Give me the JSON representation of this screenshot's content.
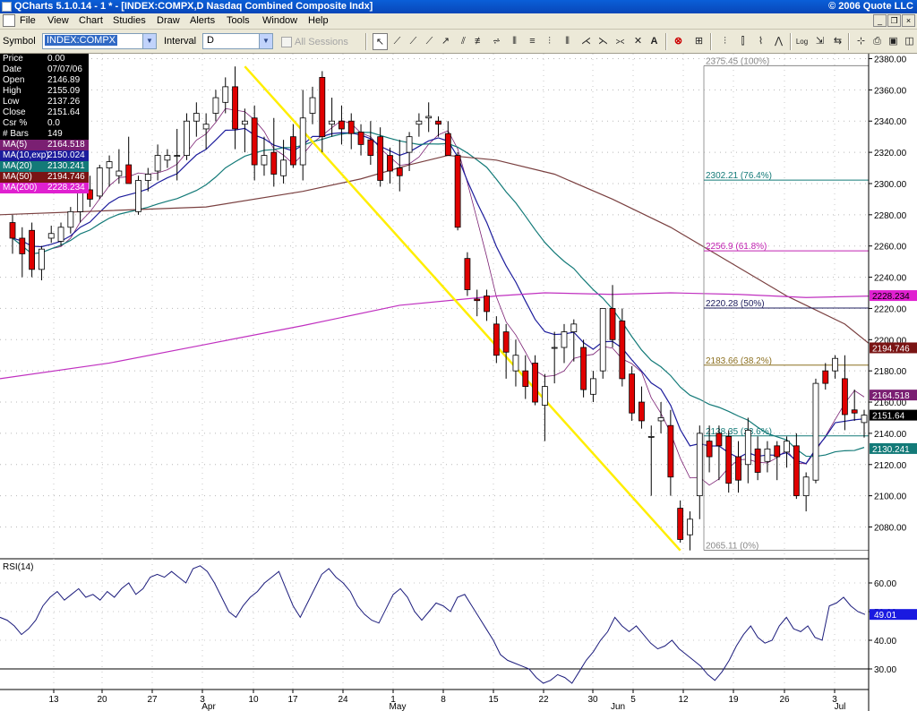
{
  "window": {
    "title": "QCharts 5.1.0.14 - 1 * - [INDEX:COMPX,D Nasdaq Combined Composite Indx]",
    "copyright": "© 2006 Quote LLC"
  },
  "menu": [
    "File",
    "View",
    "Chart",
    "Studies",
    "Draw",
    "Alerts",
    "Tools",
    "Window",
    "Help"
  ],
  "toolbar": {
    "symbol_label": "Symbol",
    "symbol_value": "INDEX:COMPX",
    "interval_label": "Interval",
    "interval_value": "D",
    "sessions_label": "All Sessions"
  },
  "data_window": [
    {
      "label": "Price",
      "value": "0.00",
      "bg": "#000000",
      "fg": "#ffffff"
    },
    {
      "label": "Date",
      "value": "07/07/06",
      "bg": "#000000",
      "fg": "#ffffff"
    },
    {
      "label": "Open",
      "value": "2146.89",
      "bg": "#000000",
      "fg": "#ffffff"
    },
    {
      "label": "High",
      "value": "2155.09",
      "bg": "#000000",
      "fg": "#ffffff"
    },
    {
      "label": "Low",
      "value": "2137.26",
      "bg": "#000000",
      "fg": "#ffffff"
    },
    {
      "label": "Close",
      "value": "2151.64",
      "bg": "#000000",
      "fg": "#ffffff"
    },
    {
      "label": "Csr %",
      "value": "0.0",
      "bg": "#000000",
      "fg": "#ffffff"
    },
    {
      "label": "# Bars",
      "value": "149",
      "bg": "#000000",
      "fg": "#ffffff"
    },
    {
      "label": "MA(5)",
      "value": "2164.518",
      "bg": "#7a1f72",
      "fg": "#ffffff"
    },
    {
      "label": "MA(10,exp)",
      "value": "2150.024",
      "bg": "#1c1c9c",
      "fg": "#ffffff"
    },
    {
      "label": "MA(20)",
      "value": "2130.241",
      "bg": "#137a78",
      "fg": "#ffffff"
    },
    {
      "label": "MA(50)",
      "value": "2194.746",
      "bg": "#7a1414",
      "fg": "#ffffff"
    },
    {
      "label": "MA(200)",
      "value": "2228.234",
      "bg": "#e020d0",
      "fg": "#ffffff"
    }
  ],
  "chart_data": {
    "type": "candlestick",
    "symbol": "INDEX:COMPX",
    "interval": "D",
    "price_axis": {
      "min": 2060,
      "max": 2385,
      "ticks": [
        2080,
        2100,
        2120,
        2140,
        2160,
        2180,
        2200,
        2220,
        2240,
        2260,
        2280,
        2300,
        2320,
        2340,
        2360,
        2380
      ]
    },
    "x_day_labels": [
      "13",
      "20",
      "27",
      "3",
      "10",
      "17",
      "24",
      "1",
      "8",
      "15",
      "22",
      "30",
      "5",
      "12",
      "19",
      "26",
      "3"
    ],
    "x_month_labels": [
      "Apr",
      "May",
      "Jun",
      "Jul"
    ],
    "candles": [
      {
        "o": 2275,
        "h": 2280,
        "l": 2255,
        "c": 2265
      },
      {
        "o": 2265,
        "h": 2272,
        "l": 2240,
        "c": 2255
      },
      {
        "o": 2270,
        "h": 2275,
        "l": 2240,
        "c": 2245
      },
      {
        "o": 2245,
        "h": 2260,
        "l": 2238,
        "c": 2258
      },
      {
        "o": 2265,
        "h": 2273,
        "l": 2262,
        "c": 2268
      },
      {
        "o": 2263,
        "h": 2275,
        "l": 2260,
        "c": 2272
      },
      {
        "o": 2272,
        "h": 2285,
        "l": 2268,
        "c": 2282
      },
      {
        "o": 2282,
        "h": 2300,
        "l": 2275,
        "c": 2297
      },
      {
        "o": 2296,
        "h": 2305,
        "l": 2285,
        "c": 2290
      },
      {
        "o": 2292,
        "h": 2312,
        "l": 2290,
        "c": 2310
      },
      {
        "o": 2310,
        "h": 2318,
        "l": 2298,
        "c": 2314
      },
      {
        "o": 2305,
        "h": 2322,
        "l": 2300,
        "c": 2308
      },
      {
        "o": 2312,
        "h": 2330,
        "l": 2300,
        "c": 2300
      },
      {
        "o": 2282,
        "h": 2305,
        "l": 2280,
        "c": 2302
      },
      {
        "o": 2302,
        "h": 2310,
        "l": 2295,
        "c": 2306
      },
      {
        "o": 2308,
        "h": 2325,
        "l": 2302,
        "c": 2318
      },
      {
        "o": 2315,
        "h": 2322,
        "l": 2310,
        "c": 2318
      },
      {
        "o": 2318,
        "h": 2335,
        "l": 2302,
        "c": 2318
      },
      {
        "o": 2318,
        "h": 2345,
        "l": 2315,
        "c": 2340
      },
      {
        "o": 2340,
        "h": 2352,
        "l": 2330,
        "c": 2345
      },
      {
        "o": 2335,
        "h": 2345,
        "l": 2322,
        "c": 2338
      },
      {
        "o": 2345,
        "h": 2360,
        "l": 2340,
        "c": 2355
      },
      {
        "o": 2352,
        "h": 2368,
        "l": 2345,
        "c": 2362
      },
      {
        "o": 2362,
        "h": 2375,
        "l": 2322,
        "c": 2335
      },
      {
        "o": 2338,
        "h": 2348,
        "l": 2320,
        "c": 2340
      },
      {
        "o": 2342,
        "h": 2350,
        "l": 2302,
        "c": 2312
      },
      {
        "o": 2312,
        "h": 2330,
        "l": 2305,
        "c": 2318
      },
      {
        "o": 2320,
        "h": 2342,
        "l": 2298,
        "c": 2306
      },
      {
        "o": 2305,
        "h": 2328,
        "l": 2300,
        "c": 2315
      },
      {
        "o": 2330,
        "h": 2338,
        "l": 2310,
        "c": 2312
      },
      {
        "o": 2312,
        "h": 2360,
        "l": 2302,
        "c": 2342
      },
      {
        "o": 2345,
        "h": 2362,
        "l": 2338,
        "c": 2355
      },
      {
        "o": 2368,
        "h": 2372,
        "l": 2320,
        "c": 2330
      },
      {
        "o": 2338,
        "h": 2355,
        "l": 2330,
        "c": 2340
      },
      {
        "o": 2340,
        "h": 2350,
        "l": 2325,
        "c": 2335
      },
      {
        "o": 2340,
        "h": 2345,
        "l": 2322,
        "c": 2332
      },
      {
        "o": 2333,
        "h": 2338,
        "l": 2318,
        "c": 2325
      },
      {
        "o": 2328,
        "h": 2340,
        "l": 2312,
        "c": 2318
      },
      {
        "o": 2330,
        "h": 2336,
        "l": 2298,
        "c": 2302
      },
      {
        "o": 2318,
        "h": 2323,
        "l": 2300,
        "c": 2308
      },
      {
        "o": 2310,
        "h": 2328,
        "l": 2295,
        "c": 2305
      },
      {
        "o": 2320,
        "h": 2333,
        "l": 2308,
        "c": 2330
      },
      {
        "o": 2338,
        "h": 2345,
        "l": 2330,
        "c": 2340
      },
      {
        "o": 2342,
        "h": 2352,
        "l": 2333,
        "c": 2343
      },
      {
        "o": 2340,
        "h": 2343,
        "l": 2330,
        "c": 2338
      },
      {
        "o": 2332,
        "h": 2340,
        "l": 2318,
        "c": 2318
      },
      {
        "o": 2318,
        "h": 2320,
        "l": 2270,
        "c": 2272
      },
      {
        "o": 2252,
        "h": 2256,
        "l": 2228,
        "c": 2232
      },
      {
        "o": 2226,
        "h": 2232,
        "l": 2215,
        "c": 2225
      },
      {
        "o": 2228,
        "h": 2232,
        "l": 2212,
        "c": 2218
      },
      {
        "o": 2210,
        "h": 2215,
        "l": 2185,
        "c": 2190
      },
      {
        "o": 2205,
        "h": 2210,
        "l": 2175,
        "c": 2192
      },
      {
        "o": 2180,
        "h": 2200,
        "l": 2170,
        "c": 2190
      },
      {
        "o": 2180,
        "h": 2190,
        "l": 2162,
        "c": 2170
      },
      {
        "o": 2185,
        "h": 2190,
        "l": 2158,
        "c": 2160
      },
      {
        "o": 2158,
        "h": 2178,
        "l": 2135,
        "c": 2170
      },
      {
        "o": 2195,
        "h": 2205,
        "l": 2172,
        "c": 2195
      },
      {
        "o": 2195,
        "h": 2210,
        "l": 2185,
        "c": 2205
      },
      {
        "o": 2205,
        "h": 2213,
        "l": 2186,
        "c": 2210
      },
      {
        "o": 2195,
        "h": 2200,
        "l": 2163,
        "c": 2168
      },
      {
        "o": 2165,
        "h": 2180,
        "l": 2160,
        "c": 2175
      },
      {
        "o": 2180,
        "h": 2218,
        "l": 2175,
        "c": 2220
      },
      {
        "o": 2220,
        "h": 2235,
        "l": 2195,
        "c": 2200
      },
      {
        "o": 2212,
        "h": 2220,
        "l": 2170,
        "c": 2175
      },
      {
        "o": 2178,
        "h": 2183,
        "l": 2148,
        "c": 2153
      },
      {
        "o": 2160,
        "h": 2170,
        "l": 2143,
        "c": 2148
      },
      {
        "o": 2138,
        "h": 2145,
        "l": 2100,
        "c": 2138
      },
      {
        "o": 2148,
        "h": 2160,
        "l": 2140,
        "c": 2150
      },
      {
        "o": 2145,
        "h": 2155,
        "l": 2100,
        "c": 2112
      },
      {
        "o": 2092,
        "h": 2097,
        "l": 2070,
        "c": 2072
      },
      {
        "o": 2075,
        "h": 2090,
        "l": 2065,
        "c": 2085
      },
      {
        "o": 2100,
        "h": 2145,
        "l": 2085,
        "c": 2140
      },
      {
        "o": 2135,
        "h": 2145,
        "l": 2115,
        "c": 2125
      },
      {
        "o": 2140,
        "h": 2145,
        "l": 2110,
        "c": 2132
      },
      {
        "o": 2138,
        "h": 2142,
        "l": 2102,
        "c": 2108
      },
      {
        "o": 2125,
        "h": 2135,
        "l": 2102,
        "c": 2110
      },
      {
        "o": 2120,
        "h": 2150,
        "l": 2108,
        "c": 2142
      },
      {
        "o": 2130,
        "h": 2138,
        "l": 2110,
        "c": 2115
      },
      {
        "o": 2122,
        "h": 2135,
        "l": 2115,
        "c": 2130
      },
      {
        "o": 2132,
        "h": 2135,
        "l": 2110,
        "c": 2125
      },
      {
        "o": 2128,
        "h": 2138,
        "l": 2118,
        "c": 2135
      },
      {
        "o": 2132,
        "h": 2140,
        "l": 2098,
        "c": 2100
      },
      {
        "o": 2100,
        "h": 2115,
        "l": 2090,
        "c": 2112
      },
      {
        "o": 2110,
        "h": 2175,
        "l": 2108,
        "c": 2172
      },
      {
        "o": 2180,
        "h": 2185,
        "l": 2168,
        "c": 2172
      },
      {
        "o": 2180,
        "h": 2190,
        "l": 2175,
        "c": 2188
      },
      {
        "o": 2175,
        "h": 2190,
        "l": 2142,
        "c": 2152
      },
      {
        "o": 2155,
        "h": 2168,
        "l": 2148,
        "c": 2153
      },
      {
        "o": 2146.89,
        "h": 2155.09,
        "l": 2137.26,
        "c": 2151.64
      }
    ],
    "moving_averages": [
      {
        "name": "MA(5)",
        "period": 5,
        "kind": "sma",
        "color": "#7a1f72",
        "last": 2164.518
      },
      {
        "name": "MA(10,exp)",
        "period": 10,
        "kind": "ema",
        "color": "#1c1c9c",
        "last": 2150.024
      },
      {
        "name": "MA(20)",
        "period": 20,
        "kind": "sma",
        "color": "#137a78",
        "last": 2130.241
      },
      {
        "name": "MA(50)",
        "kind": "path",
        "color": "#7a4040",
        "last": 2194.746,
        "path": [
          [
            0,
            2280
          ],
          [
            20,
            2285
          ],
          [
            30,
            2295
          ],
          [
            36,
            2303
          ],
          [
            41,
            2312
          ],
          [
            45,
            2318
          ],
          [
            50,
            2315
          ],
          [
            56,
            2306
          ],
          [
            62,
            2290
          ],
          [
            68,
            2272
          ],
          [
            74,
            2250
          ],
          [
            80,
            2228
          ],
          [
            86,
            2210
          ],
          [
            89,
            2195
          ]
        ]
      },
      {
        "name": "MA(200)",
        "kind": "path",
        "color": "#c030c0",
        "last": 2228.234,
        "path": [
          [
            0,
            2175
          ],
          [
            10,
            2185
          ],
          [
            20,
            2197
          ],
          [
            30,
            2209
          ],
          [
            40,
            2222
          ],
          [
            50,
            2228
          ],
          [
            55,
            2230
          ],
          [
            62,
            2229
          ],
          [
            68,
            2230
          ],
          [
            75,
            2229
          ],
          [
            82,
            2227
          ],
          [
            89,
            2228
          ]
        ]
      }
    ],
    "fibonacci": {
      "high": 2375.45,
      "low": 2065.11,
      "levels": [
        {
          "label": "2375.45 (100%)",
          "value": 2375.45,
          "color": "#888888"
        },
        {
          "label": "2302.21 (76.4%)",
          "value": 2302.21,
          "color": "#137a78"
        },
        {
          "label": "2256.9 (61.8%)",
          "value": 2256.9,
          "color": "#c020b0"
        },
        {
          "label": "2220.28 (50%)",
          "value": 2220.28,
          "color": "#1c1c5c"
        },
        {
          "label": "2183.66 (38.2%)",
          "value": 2183.66,
          "color": "#8c7020"
        },
        {
          "label": "2138.35 (23.6%)",
          "value": 2138.35,
          "color": "#137a78"
        },
        {
          "label": "2065.11 (0%)",
          "value": 2065.11,
          "color": "#888888"
        }
      ]
    },
    "trendline": {
      "color": "#ffee00",
      "from_bar": 24,
      "from_price": 2375,
      "to_bar": 69,
      "to_price": 2065
    },
    "price_tags": [
      {
        "text": "2228.234",
        "value": 2228.234,
        "bg": "#e020d0",
        "fg": "#000000"
      },
      {
        "text": "2194.746",
        "value": 2194.746,
        "bg": "#7a1414",
        "fg": "#ffffff"
      },
      {
        "text": "2164.518",
        "value": 2164.518,
        "bg": "#7a1f72",
        "fg": "#ffffff"
      },
      {
        "text": "2151.64",
        "value": 2151.64,
        "bg": "#000000",
        "fg": "#ffffff"
      },
      {
        "text": "2130.241",
        "value": 2130.241,
        "bg": "#137a78",
        "fg": "#ffffff"
      }
    ],
    "rsi": {
      "label": "RSI(14)",
      "ticks": [
        30,
        40,
        50,
        60
      ],
      "reference_line": 30,
      "last": 49.01,
      "last_label": "49.01",
      "color": "#1c1c7c",
      "values": [
        48,
        47,
        45,
        42,
        44,
        47,
        52,
        55,
        57,
        54,
        56,
        58,
        55,
        56,
        54,
        57,
        55,
        58,
        60,
        56,
        58,
        62,
        63,
        62,
        64,
        62,
        60,
        65,
        66,
        64,
        60,
        55,
        50,
        48,
        52,
        55,
        57,
        60,
        62,
        64,
        58,
        52,
        48,
        53,
        58,
        63,
        65,
        62,
        60,
        57,
        52,
        49,
        47,
        46,
        51,
        56,
        58,
        55,
        50,
        47,
        50,
        53,
        52,
        50,
        55,
        56,
        52,
        48,
        44,
        40,
        35,
        33,
        32,
        31,
        30,
        27,
        25,
        26,
        28,
        27,
        25,
        29,
        33,
        36,
        40,
        43,
        48,
        45,
        43,
        45,
        42,
        39,
        37,
        38,
        40,
        37,
        35,
        33,
        31,
        28,
        26,
        29,
        33,
        38,
        42,
        45,
        41,
        39,
        40,
        45,
        48,
        44,
        43,
        45,
        41,
        40,
        52,
        53,
        55,
        52,
        50,
        49.01
      ]
    }
  }
}
